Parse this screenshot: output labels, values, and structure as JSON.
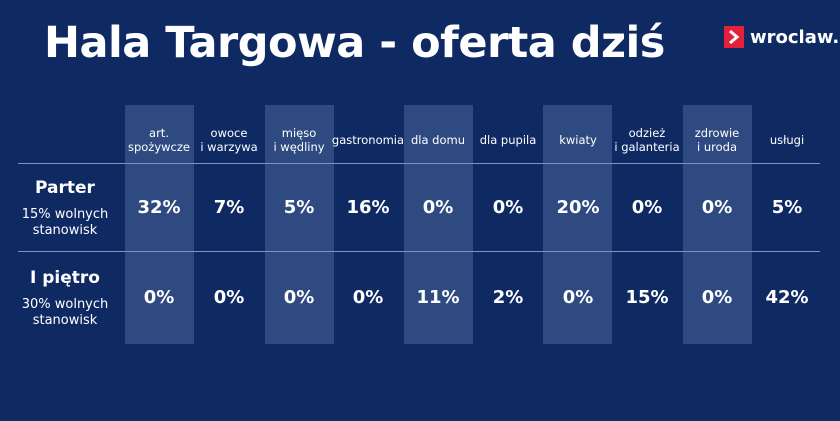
{
  "title": "Hala Targowa - oferta dziś",
  "logo": {
    "text": "wroclaw.pl",
    "icon": "chevron-right-icon",
    "color": "#e4203a"
  },
  "colors": {
    "background": "#0f2a63",
    "highlight_column": "#2f4a80"
  },
  "columns": [
    "art.\nspożywcze",
    "owoce\ni warzywa",
    "mięso\ni wędliny",
    "gastronomia",
    "dla domu",
    "dla pupila",
    "kwiaty",
    "odzież\ni galanteria",
    "zdrowie\ni uroda",
    "usługi"
  ],
  "rows": [
    {
      "title": "Parter",
      "subtitle": "15% wolnych\nstanowisk",
      "values": [
        "32%",
        "7%",
        "5%",
        "16%",
        "0%",
        "0%",
        "20%",
        "0%",
        "0%",
        "5%"
      ]
    },
    {
      "title": "I piętro",
      "subtitle": "30% wolnych\nstanowisk",
      "values": [
        "0%",
        "0%",
        "0%",
        "0%",
        "11%",
        "2%",
        "0%",
        "15%",
        "0%",
        "42%"
      ]
    }
  ]
}
